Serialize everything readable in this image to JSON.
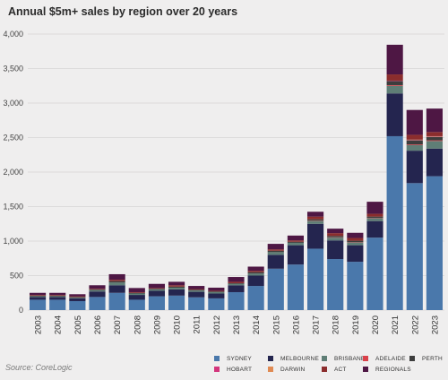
{
  "title": "Annual $5m+ sales by region over 20 years",
  "source": "Source: CoreLogic",
  "chart_data": {
    "type": "bar",
    "stacked": true,
    "categories": [
      "2003",
      "2004",
      "2005",
      "2006",
      "2007",
      "2008",
      "2009",
      "2010",
      "2011",
      "2012",
      "2013",
      "2014",
      "2015",
      "2016",
      "2017",
      "2018",
      "2019",
      "2020",
      "2021",
      "2022",
      "2023"
    ],
    "ylim": [
      0,
      4000
    ],
    "yticks": [
      0,
      500,
      1000,
      1500,
      2000,
      2500,
      3000,
      3500,
      4000
    ],
    "ytick_labels": [
      "0",
      "500",
      "1,000",
      "1,500",
      "2,000",
      "2,500",
      "3,000",
      "3,500",
      "4,000"
    ],
    "grid": true,
    "legend_position": "bottom-right",
    "series": [
      {
        "name": "SYDNEY",
        "color": "#4a78ab",
        "values": [
          150,
          150,
          130,
          190,
          250,
          150,
          200,
          210,
          185,
          170,
          260,
          350,
          600,
          660,
          890,
          740,
          700,
          1050,
          2520,
          1840,
          1940
        ]
      },
      {
        "name": "MELBOURNE",
        "color": "#24254f",
        "values": [
          40,
          40,
          40,
          80,
          110,
          70,
          80,
          90,
          80,
          70,
          100,
          150,
          200,
          280,
          360,
          270,
          240,
          240,
          620,
          470,
          400
        ]
      },
      {
        "name": "BRISBANE",
        "color": "#5f7e76",
        "values": [
          10,
          10,
          10,
          20,
          40,
          20,
          20,
          25,
          20,
          20,
          20,
          30,
          40,
          35,
          40,
          40,
          40,
          40,
          110,
          80,
          110
        ]
      },
      {
        "name": "ADELAIDE",
        "color": "#d9414a",
        "values": [
          0,
          0,
          0,
          0,
          0,
          0,
          0,
          0,
          0,
          0,
          0,
          0,
          0,
          0,
          5,
          5,
          5,
          5,
          10,
          10,
          10
        ]
      },
      {
        "name": "PERTH",
        "color": "#3d3d3d",
        "values": [
          10,
          10,
          10,
          10,
          20,
          10,
          10,
          15,
          10,
          10,
          10,
          20,
          20,
          15,
          20,
          20,
          20,
          20,
          60,
          60,
          50
        ]
      },
      {
        "name": "HOBART",
        "color": "#d3357c",
        "values": [
          0,
          0,
          0,
          0,
          0,
          0,
          0,
          0,
          0,
          0,
          0,
          0,
          0,
          0,
          0,
          0,
          0,
          0,
          5,
          5,
          5
        ]
      },
      {
        "name": "DARWIN",
        "color": "#e08a53",
        "values": [
          0,
          0,
          0,
          0,
          0,
          0,
          0,
          0,
          0,
          0,
          0,
          0,
          0,
          0,
          0,
          0,
          0,
          0,
          0,
          5,
          5
        ]
      },
      {
        "name": "ACT",
        "color": "#8b2d2d",
        "values": [
          10,
          10,
          10,
          10,
          20,
          10,
          10,
          20,
          10,
          10,
          20,
          20,
          20,
          20,
          40,
          40,
          40,
          40,
          90,
          70,
          60
        ]
      },
      {
        "name": "REGIONALS",
        "color": "#4e1744",
        "values": [
          30,
          30,
          30,
          50,
          80,
          60,
          60,
          50,
          45,
          45,
          70,
          60,
          80,
          70,
          70,
          65,
          75,
          175,
          430,
          360,
          340
        ]
      }
    ]
  }
}
